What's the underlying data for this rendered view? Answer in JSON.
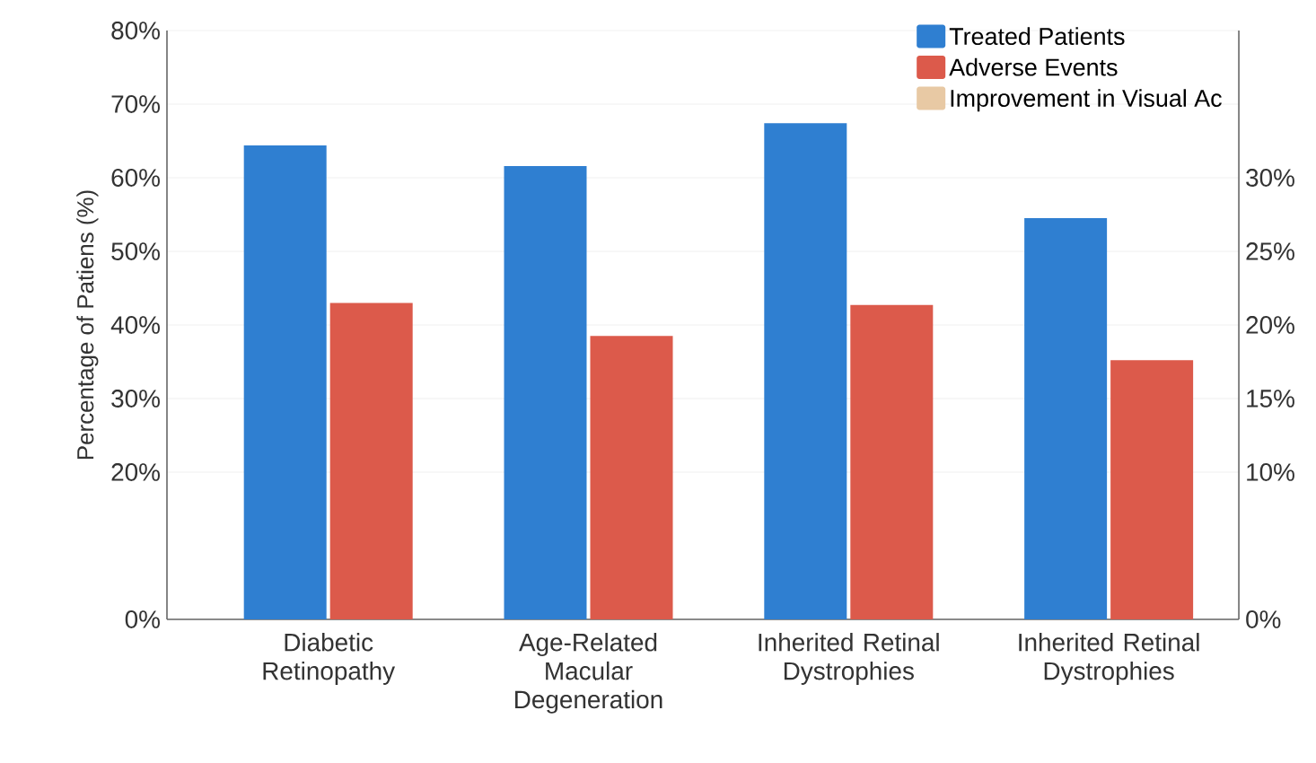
{
  "chart_data": {
    "type": "bar",
    "ylabel": "Percentage of Patiens (%)",
    "categories": [
      "Diabetic Retinopathy",
      "Age-Related Macular Degeneration",
      "Inherited Retinal Dystrophies",
      "Inherited Retinal Dystrophies"
    ],
    "series": [
      {
        "name": "Treated Patients",
        "color": "#2f7fd1",
        "values": [
          64.4,
          61.6,
          67.4,
          54.5
        ]
      },
      {
        "name": "Adverse Events",
        "color": "#dc5a4b",
        "values": [
          43.0,
          38.5,
          42.7,
          35.2
        ]
      },
      {
        "name": "Improvement in Visual Ac",
        "color": "#e8c9a4",
        "axis": "y2",
        "values": [
          null,
          null,
          null,
          null
        ]
      }
    ],
    "ylim": [
      0,
      80
    ],
    "yticks": [
      {
        "value": 0,
        "label": "0%"
      },
      {
        "value": 20,
        "label": "20%"
      },
      {
        "value": 30,
        "label": "30%"
      },
      {
        "value": 40,
        "label": "40%"
      },
      {
        "value": 50,
        "label": "50%"
      },
      {
        "value": 60,
        "label": "60%"
      },
      {
        "value": 70,
        "label": "70%"
      },
      {
        "value": 80,
        "label": "80%"
      }
    ],
    "y2lim": [
      0,
      40
    ],
    "y2ticks": [
      {
        "value": 0,
        "label": "0%"
      },
      {
        "value": 10,
        "label": "10%"
      },
      {
        "value": 15,
        "label": "15%"
      },
      {
        "value": 20,
        "label": "20%"
      },
      {
        "value": 25,
        "label": "25%"
      },
      {
        "value": 30,
        "label": "30%"
      }
    ],
    "grid": "y",
    "legend": "top right"
  }
}
